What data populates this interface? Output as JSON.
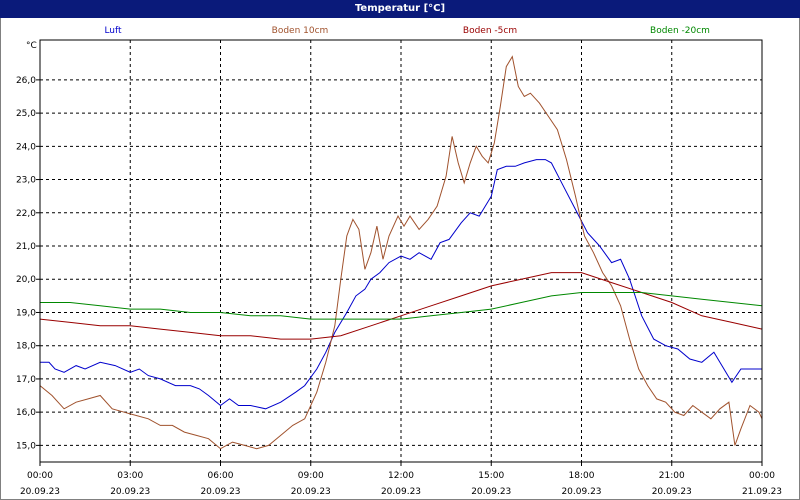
{
  "title": "Temperatur [°C]",
  "chart_data": {
    "type": "line",
    "title": "Temperatur [°C]",
    "ylabel": "°C",
    "xlabel": "",
    "ylim": [
      14.5,
      27.2
    ],
    "xlim": [
      0,
      24
    ],
    "grid": true,
    "legend_position": "top",
    "y_ticks": [
      "15,0",
      "16,0",
      "17,0",
      "18,0",
      "19,0",
      "20,0",
      "21,0",
      "22,0",
      "23,0",
      "24,0",
      "25,0",
      "26,0"
    ],
    "y_tick_values": [
      15,
      16,
      17,
      18,
      19,
      20,
      21,
      22,
      23,
      24,
      25,
      26
    ],
    "x_ticks": [
      {
        "time": "00:00",
        "date": "20.09.23"
      },
      {
        "time": "03:00",
        "date": "20.09.23"
      },
      {
        "time": "06:00",
        "date": "20.09.23"
      },
      {
        "time": "09:00",
        "date": "20.09.23"
      },
      {
        "time": "12:00",
        "date": "20.09.23"
      },
      {
        "time": "15:00",
        "date": "20.09.23"
      },
      {
        "time": "18:00",
        "date": "20.09.23"
      },
      {
        "time": "21:00",
        "date": "20.09.23"
      },
      {
        "time": "00:00",
        "date": "21.09.23"
      }
    ],
    "x_tick_values": [
      0,
      3,
      6,
      9,
      12,
      15,
      18,
      21,
      24
    ],
    "series": [
      {
        "name": "Luft",
        "color": "#0000cc",
        "points": [
          [
            0,
            17.5
          ],
          [
            0.3,
            17.5
          ],
          [
            0.5,
            17.3
          ],
          [
            0.8,
            17.2
          ],
          [
            1.2,
            17.4
          ],
          [
            1.5,
            17.3
          ],
          [
            2,
            17.5
          ],
          [
            2.5,
            17.4
          ],
          [
            3,
            17.2
          ],
          [
            3.3,
            17.3
          ],
          [
            3.6,
            17.1
          ],
          [
            4,
            17
          ],
          [
            4.5,
            16.8
          ],
          [
            5,
            16.8
          ],
          [
            5.3,
            16.7
          ],
          [
            5.6,
            16.5
          ],
          [
            6,
            16.2
          ],
          [
            6.3,
            16.4
          ],
          [
            6.6,
            16.2
          ],
          [
            7,
            16.2
          ],
          [
            7.5,
            16.1
          ],
          [
            8,
            16.3
          ],
          [
            8.5,
            16.6
          ],
          [
            8.8,
            16.8
          ],
          [
            9.2,
            17.3
          ],
          [
            9.5,
            17.8
          ],
          [
            9.8,
            18.4
          ],
          [
            10.2,
            19
          ],
          [
            10.5,
            19.5
          ],
          [
            10.8,
            19.7
          ],
          [
            11,
            20
          ],
          [
            11.3,
            20.2
          ],
          [
            11.6,
            20.5
          ],
          [
            12,
            20.7
          ],
          [
            12.3,
            20.6
          ],
          [
            12.6,
            20.8
          ],
          [
            13,
            20.6
          ],
          [
            13.3,
            21.1
          ],
          [
            13.6,
            21.2
          ],
          [
            14,
            21.7
          ],
          [
            14.3,
            22
          ],
          [
            14.6,
            21.9
          ],
          [
            15,
            22.5
          ],
          [
            15.2,
            23.3
          ],
          [
            15.5,
            23.4
          ],
          [
            15.8,
            23.4
          ],
          [
            16.1,
            23.5
          ],
          [
            16.5,
            23.6
          ],
          [
            16.8,
            23.6
          ],
          [
            17,
            23.5
          ],
          [
            17.4,
            22.8
          ],
          [
            17.8,
            22.1
          ],
          [
            18.2,
            21.4
          ],
          [
            18.6,
            21
          ],
          [
            19,
            20.5
          ],
          [
            19.3,
            20.6
          ],
          [
            19.6,
            20
          ],
          [
            20,
            18.9
          ],
          [
            20.4,
            18.2
          ],
          [
            20.8,
            18
          ],
          [
            21.2,
            17.9
          ],
          [
            21.6,
            17.6
          ],
          [
            22,
            17.5
          ],
          [
            22.4,
            17.8
          ],
          [
            22.8,
            17.2
          ],
          [
            23,
            16.9
          ],
          [
            23.3,
            17.3
          ],
          [
            23.6,
            17.3
          ],
          [
            24,
            17.3
          ]
        ]
      },
      {
        "name": "Boden 10cm",
        "color": "#a0522d",
        "points": [
          [
            0,
            16.8
          ],
          [
            0.4,
            16.5
          ],
          [
            0.8,
            16.1
          ],
          [
            1.2,
            16.3
          ],
          [
            1.6,
            16.4
          ],
          [
            2,
            16.5
          ],
          [
            2.4,
            16.1
          ],
          [
            2.8,
            16.0
          ],
          [
            3.2,
            15.9
          ],
          [
            3.6,
            15.8
          ],
          [
            4,
            15.6
          ],
          [
            4.4,
            15.6
          ],
          [
            4.8,
            15.4
          ],
          [
            5.2,
            15.3
          ],
          [
            5.6,
            15.2
          ],
          [
            6,
            14.9
          ],
          [
            6.4,
            15.1
          ],
          [
            6.8,
            15
          ],
          [
            7.2,
            14.9
          ],
          [
            7.6,
            15
          ],
          [
            8,
            15.3
          ],
          [
            8.4,
            15.6
          ],
          [
            8.8,
            15.8
          ],
          [
            9.2,
            16.6
          ],
          [
            9.5,
            17.5
          ],
          [
            9.8,
            18.6
          ],
          [
            10,
            20
          ],
          [
            10.2,
            21.3
          ],
          [
            10.4,
            21.8
          ],
          [
            10.6,
            21.5
          ],
          [
            10.8,
            20.3
          ],
          [
            11,
            20.8
          ],
          [
            11.2,
            21.6
          ],
          [
            11.4,
            20.6
          ],
          [
            11.6,
            21.3
          ],
          [
            11.9,
            21.9
          ],
          [
            12.1,
            21.6
          ],
          [
            12.3,
            21.9
          ],
          [
            12.6,
            21.5
          ],
          [
            12.9,
            21.8
          ],
          [
            13.2,
            22.2
          ],
          [
            13.5,
            23.1
          ],
          [
            13.7,
            24.3
          ],
          [
            13.9,
            23.5
          ],
          [
            14.1,
            22.9
          ],
          [
            14.3,
            23.5
          ],
          [
            14.5,
            24
          ],
          [
            14.7,
            23.7
          ],
          [
            14.9,
            23.5
          ],
          [
            15.1,
            24.1
          ],
          [
            15.3,
            25.2
          ],
          [
            15.5,
            26.4
          ],
          [
            15.7,
            26.7
          ],
          [
            15.9,
            25.8
          ],
          [
            16.1,
            25.5
          ],
          [
            16.3,
            25.6
          ],
          [
            16.6,
            25.3
          ],
          [
            16.9,
            24.9
          ],
          [
            17.2,
            24.5
          ],
          [
            17.5,
            23.6
          ],
          [
            17.8,
            22.5
          ],
          [
            18.1,
            21.3
          ],
          [
            18.4,
            20.8
          ],
          [
            18.7,
            20.2
          ],
          [
            19,
            19.8
          ],
          [
            19.3,
            19.2
          ],
          [
            19.6,
            18.2
          ],
          [
            19.9,
            17.3
          ],
          [
            20.2,
            16.8
          ],
          [
            20.5,
            16.4
          ],
          [
            20.8,
            16.3
          ],
          [
            21.1,
            16
          ],
          [
            21.4,
            15.9
          ],
          [
            21.7,
            16.2
          ],
          [
            22,
            16.0
          ],
          [
            22.3,
            15.8
          ],
          [
            22.6,
            16.1
          ],
          [
            22.9,
            16.3
          ],
          [
            23.1,
            15.0
          ],
          [
            23.3,
            15.5
          ],
          [
            23.6,
            16.2
          ],
          [
            23.9,
            16
          ],
          [
            24,
            15.8
          ]
        ]
      },
      {
        "name": "Boden -5cm",
        "color": "#990000",
        "points": [
          [
            0,
            18.8
          ],
          [
            1,
            18.7
          ],
          [
            2,
            18.6
          ],
          [
            3,
            18.6
          ],
          [
            4,
            18.5
          ],
          [
            5,
            18.4
          ],
          [
            6,
            18.3
          ],
          [
            7,
            18.3
          ],
          [
            8,
            18.2
          ],
          [
            9,
            18.2
          ],
          [
            10,
            18.3
          ],
          [
            11,
            18.6
          ],
          [
            12,
            18.9
          ],
          [
            13,
            19.2
          ],
          [
            14,
            19.5
          ],
          [
            15,
            19.8
          ],
          [
            16,
            20.0
          ],
          [
            17,
            20.2
          ],
          [
            18,
            20.2
          ],
          [
            19,
            19.9
          ],
          [
            20,
            19.6
          ],
          [
            21,
            19.3
          ],
          [
            22,
            18.9
          ],
          [
            23,
            18.7
          ],
          [
            24,
            18.5
          ]
        ]
      },
      {
        "name": "Boden -20cm",
        "color": "#008800",
        "points": [
          [
            0,
            19.3
          ],
          [
            1,
            19.3
          ],
          [
            2,
            19.2
          ],
          [
            3,
            19.1
          ],
          [
            4,
            19.1
          ],
          [
            5,
            19.0
          ],
          [
            6,
            19.0
          ],
          [
            7,
            18.9
          ],
          [
            8,
            18.9
          ],
          [
            9,
            18.8
          ],
          [
            10,
            18.8
          ],
          [
            11,
            18.8
          ],
          [
            12,
            18.8
          ],
          [
            13,
            18.9
          ],
          [
            14,
            19.0
          ],
          [
            15,
            19.1
          ],
          [
            16,
            19.3
          ],
          [
            17,
            19.5
          ],
          [
            18,
            19.6
          ],
          [
            19,
            19.6
          ],
          [
            20,
            19.6
          ],
          [
            21,
            19.5
          ],
          [
            22,
            19.4
          ],
          [
            23,
            19.3
          ],
          [
            24,
            19.2
          ]
        ]
      }
    ]
  }
}
